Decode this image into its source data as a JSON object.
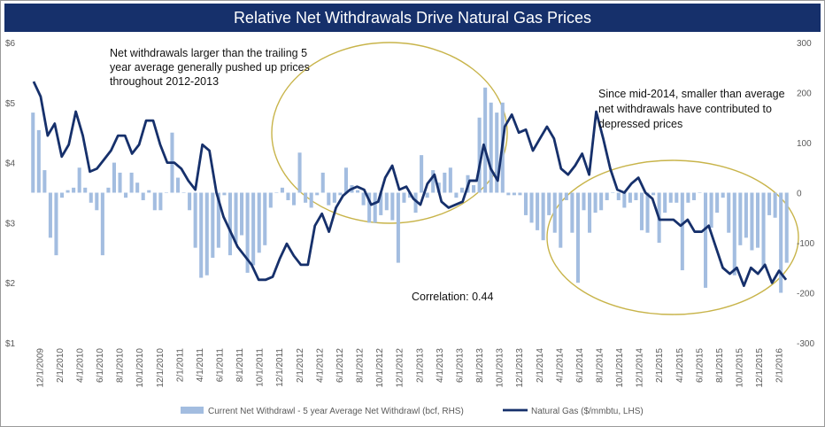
{
  "chart_data": {
    "type": "bar+line",
    "title": "Relative Net Withdrawals Drive Natural Gas Prices",
    "left_axis": {
      "min": 1,
      "max": 6,
      "ticks": [
        "$1",
        "$2",
        "$3",
        "$4",
        "$5",
        "$6"
      ]
    },
    "right_axis": {
      "min": -300,
      "max": 300,
      "ticks": [
        "-300",
        "-200",
        "-100",
        "0",
        "100",
        "200",
        "300"
      ]
    },
    "x_tick_labels": [
      "12/1/2009",
      "2/1/2010",
      "4/1/2010",
      "6/1/2010",
      "8/1/2010",
      "10/1/2010",
      "12/1/2010",
      "2/1/2011",
      "4/1/2011",
      "6/1/2011",
      "8/1/2011",
      "10/1/2011",
      "12/1/2011",
      "2/1/2012",
      "4/1/2012",
      "6/1/2012",
      "8/1/2012",
      "10/1/2012",
      "12/1/2012",
      "2/1/2013",
      "4/1/2013",
      "6/1/2013",
      "8/1/2013",
      "10/1/2013",
      "12/1/2013",
      "2/1/2014",
      "4/1/2014",
      "6/1/2014",
      "8/1/2014",
      "10/1/2014",
      "12/1/2014",
      "2/1/2015",
      "4/1/2015",
      "6/1/2015",
      "8/1/2015",
      "10/1/2015",
      "12/1/2015",
      "2/1/2016"
    ],
    "series": [
      {
        "name": "Current Net Withdrawl - 5 year Average Net Withdrawl (bcf, RHS)",
        "type": "bar",
        "axis": "right",
        "color": "#a3bde0",
        "values": [
          160,
          125,
          45,
          -90,
          -125,
          -10,
          5,
          10,
          50,
          10,
          -20,
          -35,
          -125,
          10,
          60,
          40,
          -10,
          40,
          20,
          -15,
          5,
          -35,
          -35,
          0,
          120,
          30,
          0,
          -35,
          -110,
          -170,
          -165,
          -130,
          -110,
          -5,
          -125,
          -100,
          -85,
          -160,
          -145,
          -120,
          -105,
          -30,
          0,
          10,
          -15,
          -25,
          80,
          -20,
          -30,
          -5,
          40,
          -25,
          -20,
          -5,
          50,
          15,
          5,
          -25,
          -60,
          -60,
          -45,
          -35,
          -55,
          -140,
          -20,
          -10,
          -40,
          75,
          -10,
          45,
          20,
          40,
          50,
          -10,
          10,
          35,
          15,
          150,
          210,
          180,
          160,
          180,
          -5,
          -5,
          -5,
          -45,
          -60,
          -75,
          -95,
          -45,
          -80,
          -110,
          -15,
          -80,
          -180,
          -35,
          -80,
          -40,
          -35,
          -15,
          0,
          -15,
          -30,
          -20,
          -15,
          -75,
          -80,
          -5,
          -100,
          -40,
          -20,
          -20,
          -155,
          -20,
          -15,
          0,
          -190,
          -70,
          -40,
          -10,
          -80,
          -165,
          -105,
          -90,
          -115,
          -110,
          -150,
          -45,
          -50,
          -200,
          -140
        ]
      },
      {
        "name": "Natural Gas ($/mmbtu, LHS)",
        "type": "line",
        "axis": "left",
        "color": "#16306b",
        "values": [
          5.35,
          5.1,
          4.45,
          4.65,
          4.1,
          4.3,
          4.85,
          4.45,
          3.85,
          3.9,
          4.05,
          4.2,
          4.45,
          4.45,
          4.15,
          4.3,
          4.7,
          4.7,
          4.3,
          4.0,
          4.0,
          3.9,
          3.7,
          3.55,
          4.3,
          4.2,
          3.5,
          3.1,
          2.85,
          2.6,
          2.45,
          2.3,
          2.05,
          2.05,
          2.1,
          2.4,
          2.65,
          2.45,
          2.3,
          2.3,
          2.95,
          3.15,
          2.85,
          3.25,
          3.45,
          3.55,
          3.6,
          3.55,
          3.3,
          3.35,
          3.75,
          3.95,
          3.55,
          3.6,
          3.4,
          3.3,
          3.65,
          3.8,
          3.35,
          3.25,
          3.3,
          3.35,
          3.7,
          3.7,
          4.3,
          3.9,
          3.7,
          4.6,
          4.8,
          4.5,
          4.55,
          4.2,
          4.4,
          4.6,
          4.4,
          3.9,
          3.8,
          3.95,
          4.15,
          3.8,
          4.85,
          4.4,
          3.9,
          3.55,
          3.5,
          3.65,
          3.75,
          3.5,
          3.4,
          3.05,
          3.05,
          3.05,
          2.95,
          3.05,
          2.85,
          2.85,
          2.95,
          2.6,
          2.25,
          2.15,
          2.25,
          1.95,
          2.25,
          2.15,
          2.3,
          2.0,
          2.2,
          2.05
        ]
      }
    ],
    "annotations": [
      "Net withdrawals larger than the trailing 5",
      "year average generally pushed up prices",
      "throughout 2012-2013",
      "Since mid-2014, smaller than average",
      "net withdrawals have contributed to",
      "depressed prices",
      "Correlation: 0.44"
    ],
    "grid": false,
    "legend": "bottom"
  }
}
